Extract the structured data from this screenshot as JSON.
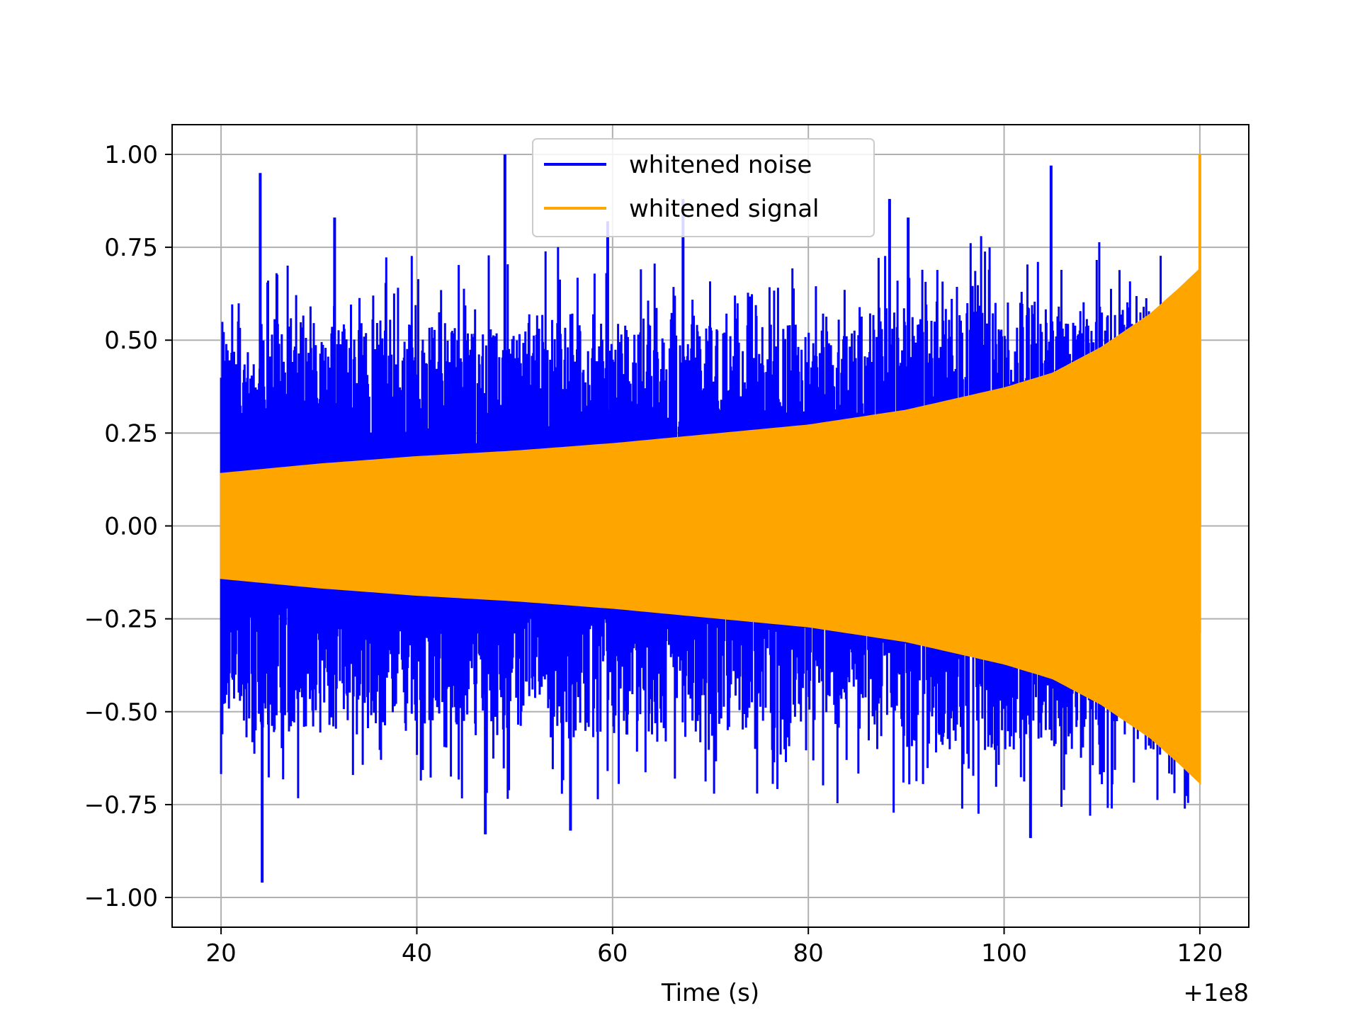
{
  "chart_data": {
    "type": "line",
    "title": "",
    "xlabel": "Time (s)",
    "ylabel": "",
    "x_offset_label": "+1e8",
    "xlim": [
      15,
      125
    ],
    "ylim": [
      -1.08,
      1.08
    ],
    "x_ticks": [
      20,
      40,
      60,
      80,
      100,
      120
    ],
    "x_tick_labels": [
      "20",
      "40",
      "60",
      "80",
      "100",
      "120"
    ],
    "y_ticks": [
      1.0,
      0.75,
      0.5,
      0.25,
      0.0,
      -0.25,
      -0.5,
      -0.75,
      -1.0
    ],
    "y_tick_labels": [
      "1.00",
      "0.75",
      "0.50",
      "0.25",
      "0.00",
      "−0.25",
      "−0.50",
      "−0.75",
      "−1.00"
    ],
    "grid": true,
    "legend_position": "top-center",
    "series": [
      {
        "name": "whitened noise",
        "color": "#0000ff",
        "x_range": [
          20,
          120
        ],
        "envelope": {
          "x": [
            20,
            30,
            40,
            50,
            60,
            70,
            80,
            90,
            100,
            105,
            110,
            115,
            120
          ],
          "typical_max": [
            0.5,
            0.52,
            0.5,
            0.52,
            0.52,
            0.5,
            0.5,
            0.55,
            0.55,
            0.55,
            0.55,
            0.55,
            0.55
          ],
          "typical_min": [
            -0.5,
            -0.52,
            -0.5,
            -0.52,
            -0.52,
            -0.5,
            -0.5,
            -0.55,
            -0.55,
            -0.55,
            -0.55,
            -0.55,
            -0.55
          ]
        },
        "peaks": [
          {
            "x": 24.0,
            "y": 0.95
          },
          {
            "x": 24.2,
            "y": -0.96
          },
          {
            "x": 31.6,
            "y": 0.83
          },
          {
            "x": 49.0,
            "y": 1.0
          },
          {
            "x": 47.0,
            "y": -0.83
          },
          {
            "x": 55.7,
            "y": -0.82
          },
          {
            "x": 59.5,
            "y": 0.82
          },
          {
            "x": 67.2,
            "y": 0.88
          },
          {
            "x": 90.2,
            "y": 0.83
          },
          {
            "x": 102.7,
            "y": -0.84
          },
          {
            "x": 104.8,
            "y": 0.97
          },
          {
            "x": 88.3,
            "y": 0.88
          }
        ]
      },
      {
        "name": "whitened signal",
        "color": "#ffa500",
        "x_range": [
          20,
          120
        ],
        "envelope": {
          "x": [
            20,
            30,
            40,
            50,
            60,
            70,
            80,
            90,
            100,
            105,
            110,
            115,
            118,
            120
          ],
          "amplitude": [
            0.14,
            0.165,
            0.185,
            0.2,
            0.22,
            0.245,
            0.27,
            0.31,
            0.37,
            0.41,
            0.48,
            0.57,
            0.64,
            0.69
          ]
        },
        "peaks": [
          {
            "x": 120.0,
            "y": 1.0
          }
        ]
      }
    ]
  }
}
